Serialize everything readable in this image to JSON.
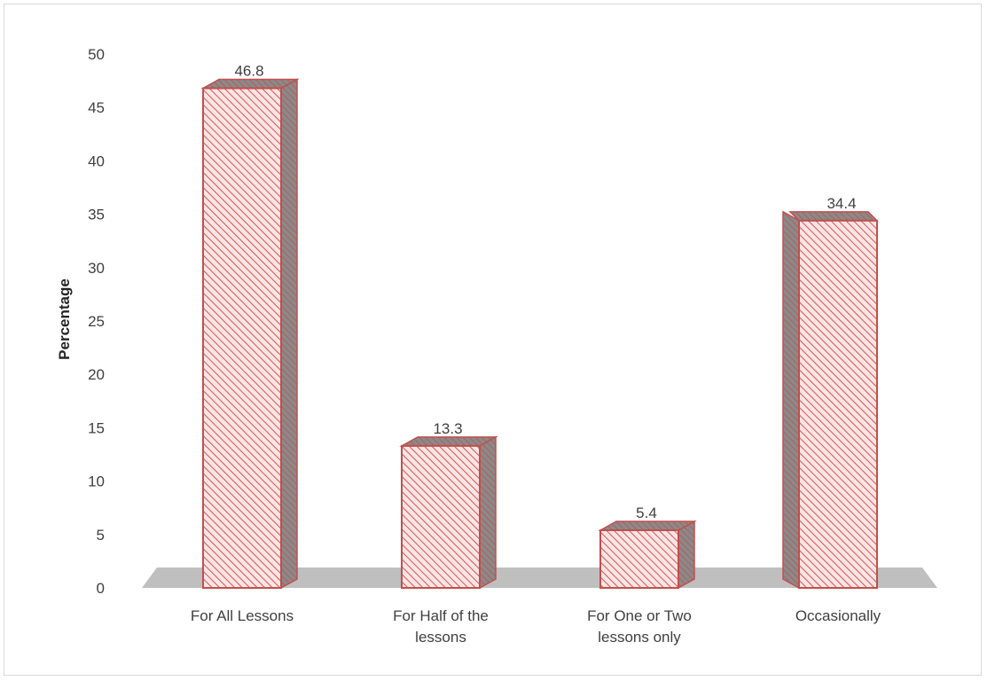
{
  "chart_data": {
    "type": "bar",
    "categories": [
      [
        "For All Lessons"
      ],
      [
        "For Half of the",
        "lessons"
      ],
      [
        "For One or Two",
        "lessons only"
      ],
      [
        "Occasionally"
      ]
    ],
    "values": [
      46.8,
      13.3,
      5.4,
      34.4
    ],
    "data_labels": [
      "46.8",
      "13.3",
      "5.4",
      "34.4"
    ],
    "title": "",
    "xlabel": "",
    "ylabel": "Percentage",
    "ylim": [
      0,
      50
    ],
    "yticks": [
      "0",
      "5",
      "10",
      "15",
      "20",
      "25",
      "30",
      "35",
      "40",
      "45",
      "50"
    ],
    "grid": false,
    "legend": "none",
    "style": "3d-hatched-bar",
    "colors": {
      "bar_fill": "#fbe5e5",
      "hatch": "#d9534f",
      "bar_edge": "#c0504d",
      "side_dark": "#7f7f7f",
      "floor": "#bfbfbf"
    }
  }
}
